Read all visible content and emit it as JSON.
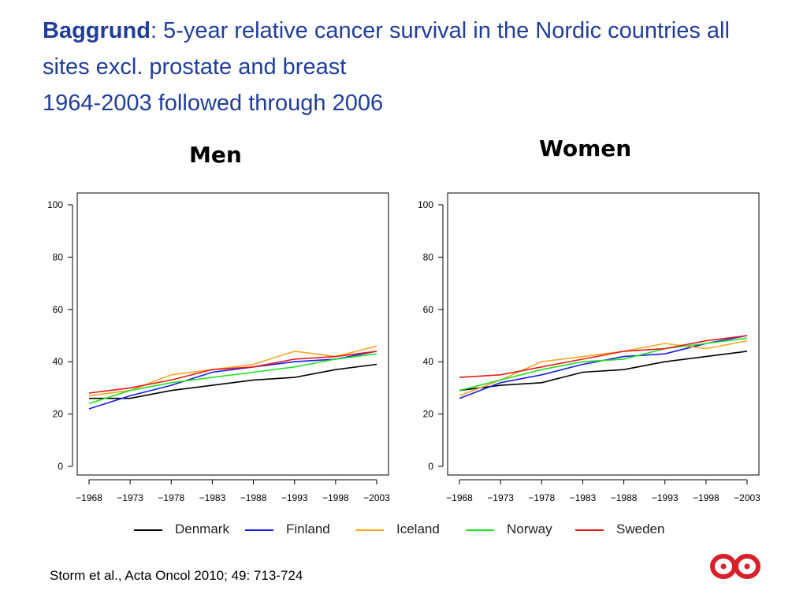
{
  "title": {
    "bold": "Baggrund",
    "rest": ": 5-year relative cancer survival in the Nordic countries all sites excl. prostate and breast",
    "line3": "1964-2003 followed through 2006"
  },
  "source": "Storm et al., Acta Oncol 2010; 49: 713-724",
  "logo_icon": "red-infinity-logo",
  "colors": {
    "Denmark": "#000000",
    "Finland": "#1a1ae6",
    "Iceland": "#f5a623",
    "Norway": "#22e022",
    "Sweden": "#e61a1a"
  },
  "legend": [
    {
      "name": "Denmark",
      "color": "#000000"
    },
    {
      "name": "Finland",
      "color": "#1a1ae6"
    },
    {
      "name": "Iceland",
      "color": "#f5a623"
    },
    {
      "name": "Norway",
      "color": "#22e022"
    },
    {
      "name": "Sweden",
      "color": "#e61a1a"
    }
  ],
  "chart_data": [
    {
      "type": "line",
      "title": "Men",
      "categories": [
        "−1968",
        "−1973",
        "−1978",
        "−1983",
        "−1988",
        "−1993",
        "−1998",
        "−2003"
      ],
      "yticks": [
        0,
        20,
        40,
        60,
        80,
        100
      ],
      "ylim": [
        0,
        100
      ],
      "grid": false,
      "series": [
        {
          "name": "Denmark",
          "values": [
            26,
            26,
            29,
            31,
            33,
            34,
            37,
            39
          ]
        },
        {
          "name": "Finland",
          "values": [
            22,
            27,
            31,
            36,
            38,
            40,
            41,
            44
          ]
        },
        {
          "name": "Iceland",
          "values": [
            27,
            29,
            35,
            37,
            39,
            44,
            42,
            46
          ]
        },
        {
          "name": "Norway",
          "values": [
            24,
            29,
            32,
            34,
            36,
            38,
            41,
            43
          ]
        },
        {
          "name": "Sweden",
          "values": [
            28,
            30,
            33,
            37,
            38,
            41,
            42,
            44
          ]
        }
      ]
    },
    {
      "type": "line",
      "title": "Women",
      "categories": [
        "−1968",
        "−1973",
        "−1978",
        "−1983",
        "−1988",
        "−1993",
        "−1998",
        "−2003"
      ],
      "yticks": [
        0,
        20,
        40,
        60,
        80,
        100
      ],
      "ylim": [
        0,
        100
      ],
      "grid": false,
      "series": [
        {
          "name": "Denmark",
          "values": [
            29,
            31,
            32,
            36,
            37,
            40,
            42,
            44
          ]
        },
        {
          "name": "Finland",
          "values": [
            26,
            32,
            35,
            39,
            42,
            43,
            47,
            50
          ]
        },
        {
          "name": "Iceland",
          "values": [
            27,
            33,
            40,
            42,
            44,
            47,
            45,
            48
          ]
        },
        {
          "name": "Norway",
          "values": [
            29,
            33,
            37,
            40,
            41,
            45,
            47,
            49
          ]
        },
        {
          "name": "Sweden",
          "values": [
            34,
            35,
            38,
            41,
            44,
            45,
            48,
            50
          ]
        }
      ]
    }
  ]
}
